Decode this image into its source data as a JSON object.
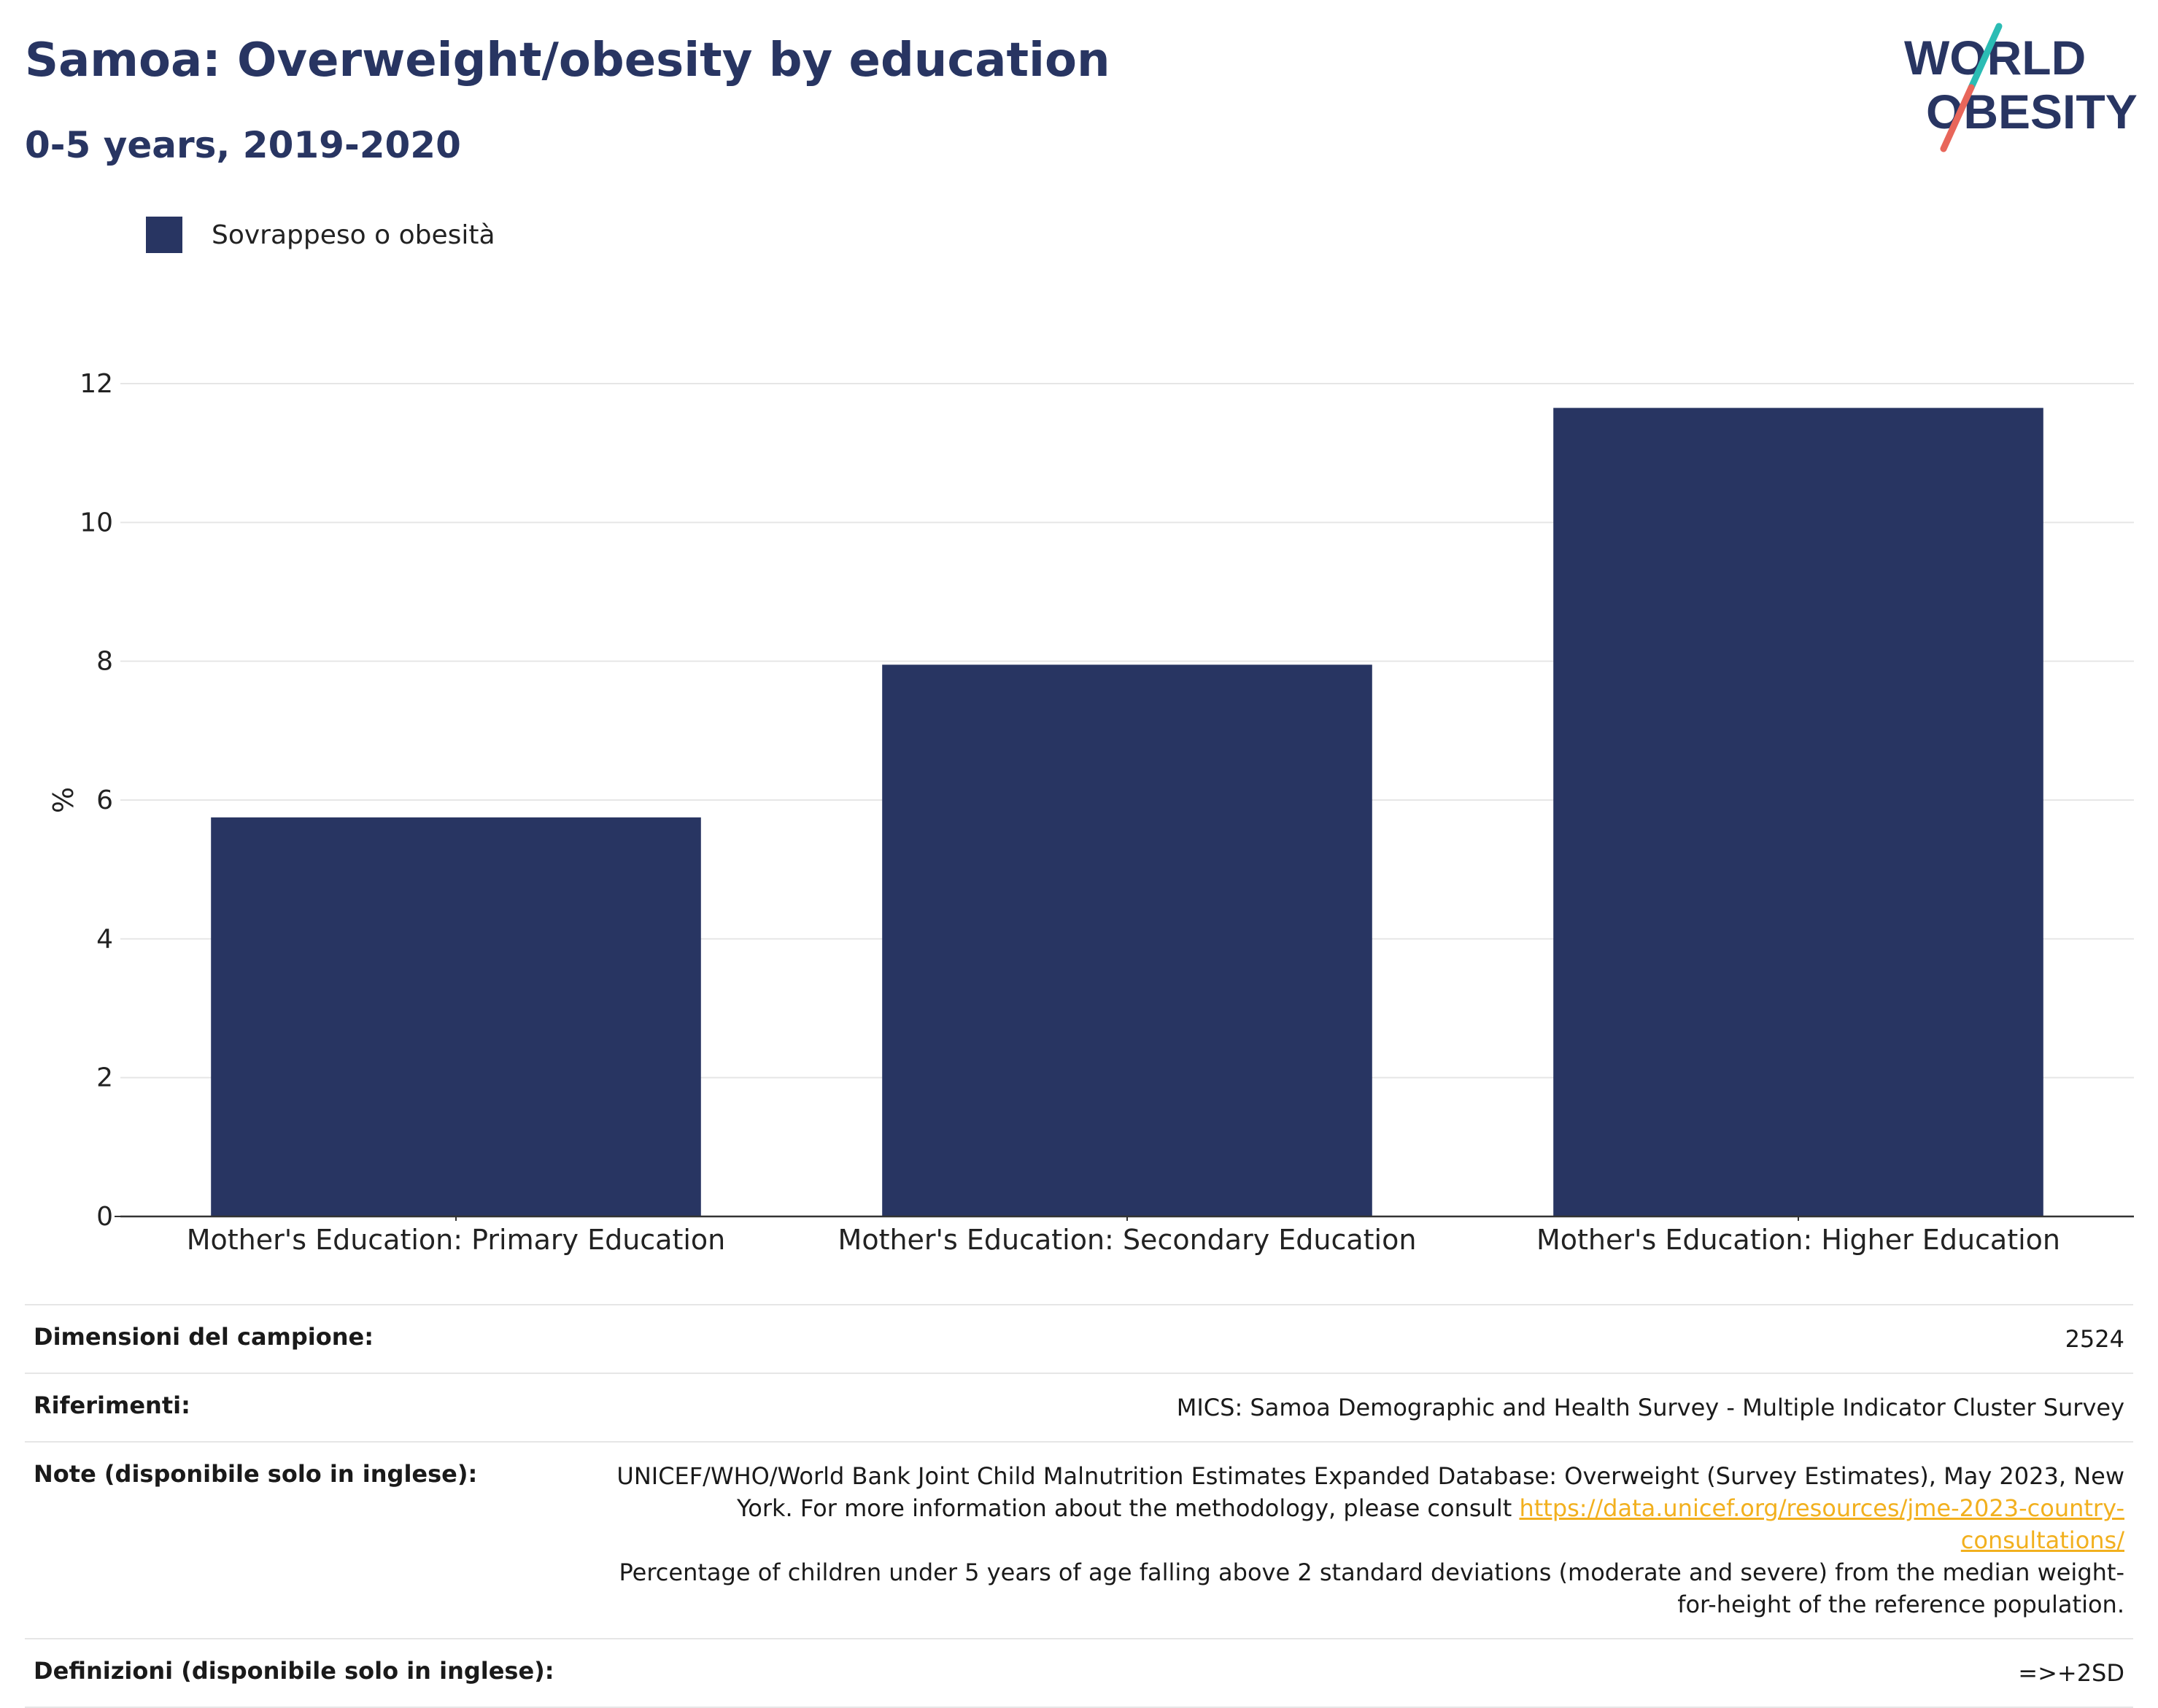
{
  "header": {
    "title": "Samoa: Overweight/obesity by education",
    "subtitle": "0-5 years, 2019-2020"
  },
  "logo": {
    "line1": "WORLD",
    "line2": "OBESITY",
    "colors": {
      "text": "#283562",
      "slash_top": "#2bbcb4",
      "slash_bottom": "#e8665a"
    }
  },
  "colors": {
    "bar": "#283562",
    "axis": "#333333",
    "grid": "#e6e6e6",
    "link": "#f2b01e"
  },
  "chart_data": {
    "type": "bar",
    "categories": [
      "Mother's Education: Primary Education",
      "Mother's Education: Secondary Education",
      "Mother's Education: Higher Education"
    ],
    "series": [
      {
        "name": "Sovrappeso o obesità",
        "values": [
          5.75,
          7.95,
          11.65
        ]
      }
    ],
    "ylabel": "%",
    "ylim": [
      0,
      12
    ],
    "yticks": [
      0,
      2,
      4,
      6,
      8,
      10,
      12
    ],
    "grid": true,
    "legend_position": "top-left"
  },
  "meta": {
    "rows": [
      {
        "label": "Dimensioni del campione:",
        "value": "2524"
      },
      {
        "label": "Riferimenti:",
        "value": "MICS: Samoa Demographic and Health Survey - Multiple Indicator Cluster Survey"
      },
      {
        "label": "Note (disponibile solo in inglese):",
        "value": "UNICEF/WHO/World Bank Joint Child Malnutrition Estimates Expanded Database: Overweight (Survey Estimates), May 2023, New York. For more information about the methodology, please consult",
        "link": "https://data.unicef.org/resources/jme-2023-country-consultations/",
        "value2": "Percentage of children under 5 years of age falling above 2 standard deviations (moderate and severe) from the median weight-for-height of the reference population."
      },
      {
        "label": "Definizioni (disponibile solo in inglese):",
        "value": "=>+2SD"
      }
    ]
  }
}
